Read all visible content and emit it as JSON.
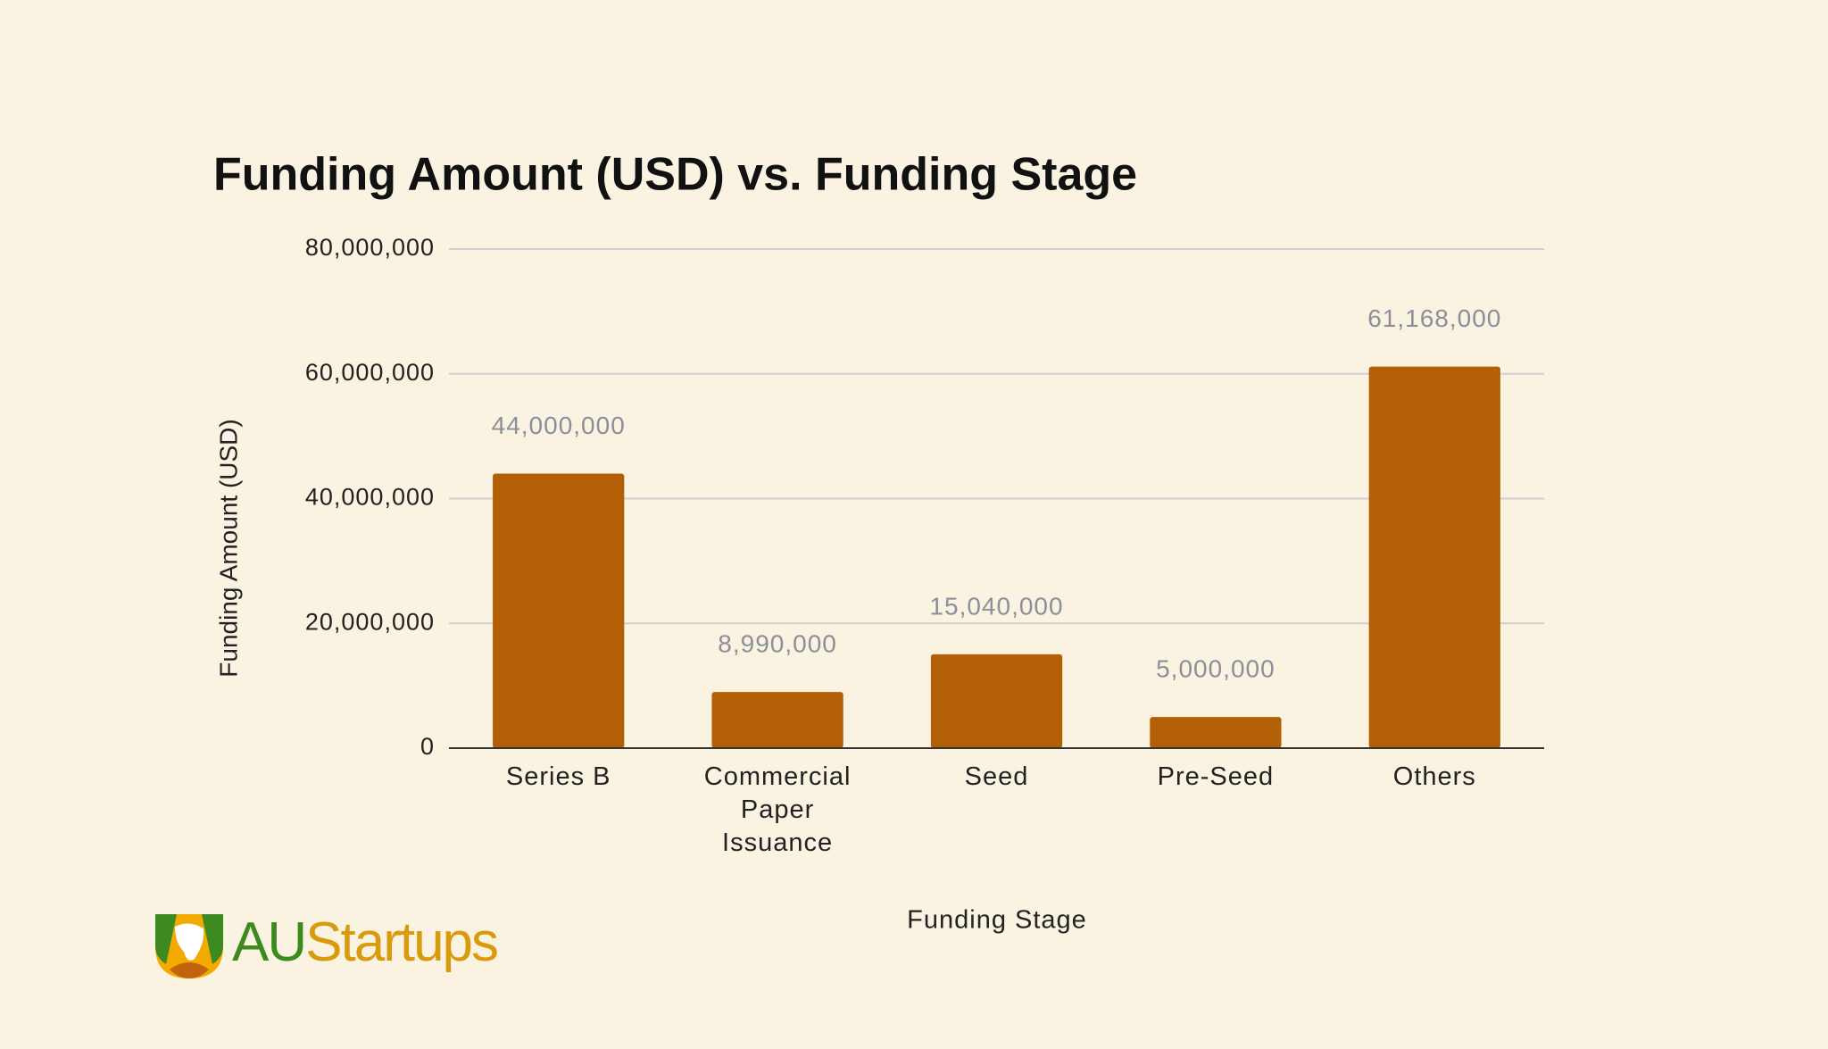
{
  "chart_data": {
    "type": "bar",
    "title": "Funding Amount (USD) vs. Funding Stage",
    "x_label": "Funding Stage",
    "y_label": "Funding Amount (USD)",
    "categories": [
      "Series B",
      "Commercial Paper Issuance",
      "Seed",
      "Pre-Seed",
      "Others"
    ],
    "values": [
      44000000,
      8990000,
      15040000,
      5000000,
      61168000
    ],
    "value_labels": [
      "44,000,000",
      "8,990,000",
      "15,040,000",
      "5,000,000",
      "61,168,000"
    ],
    "color": "#b35f06",
    "ylim": [
      0,
      80000000
    ],
    "yticks": [
      0,
      {
        "value": 20000000,
        "label": "20,000,000"
      },
      {
        "value": 40000000,
        "label": "40,000,000"
      },
      {
        "value": 60000000,
        "label": "60,000,000"
      },
      {
        "value": 80000000,
        "label": "80,000,000"
      }
    ],
    "grid": true
  },
  "logo": {
    "parts": [
      "AU",
      "Startups"
    ]
  }
}
